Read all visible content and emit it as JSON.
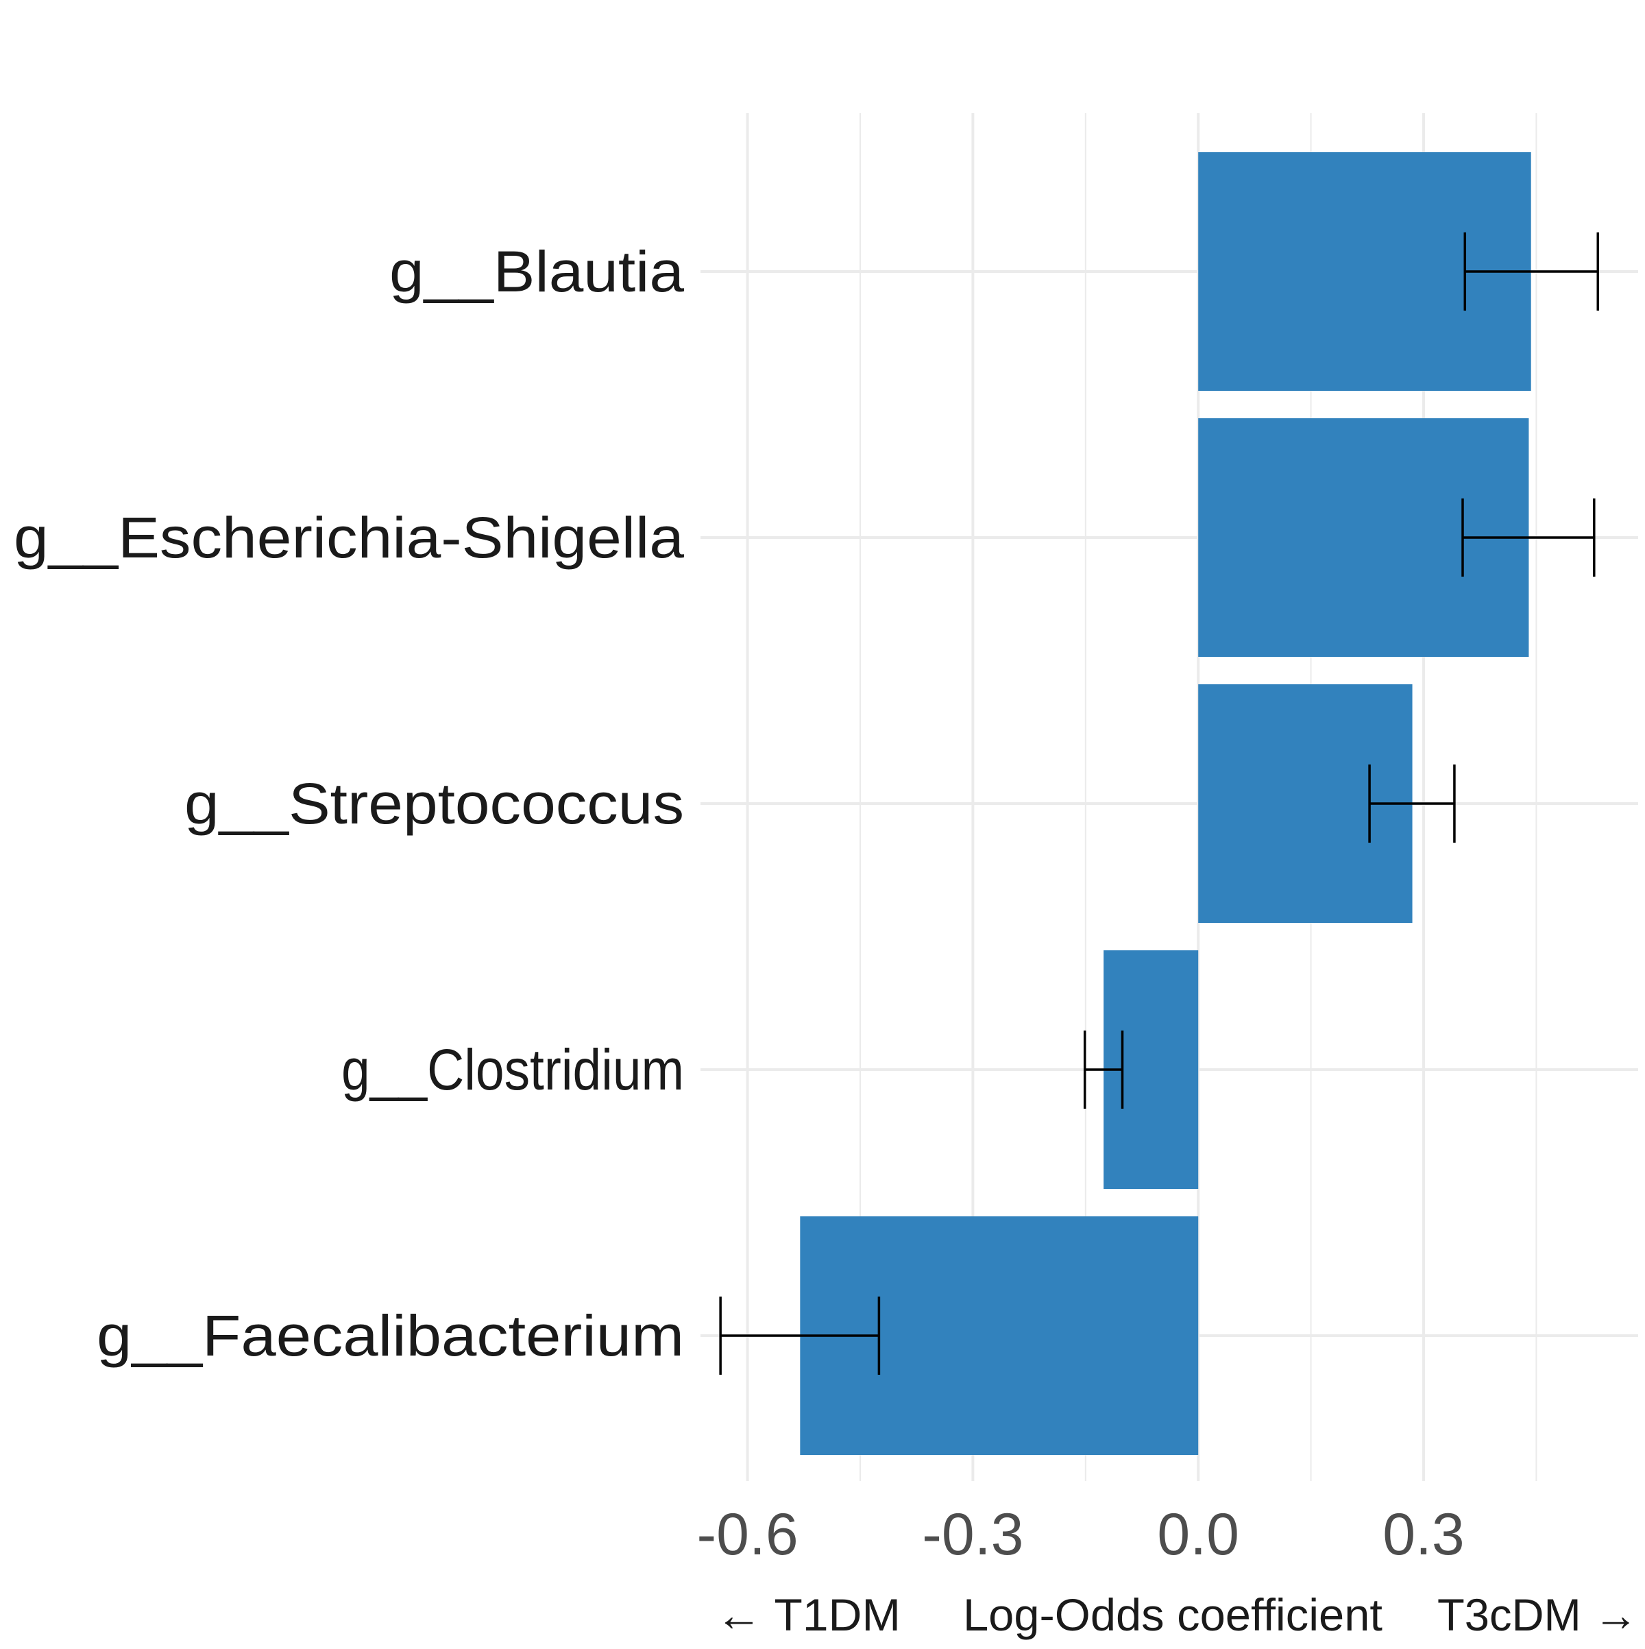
{
  "chart_data": {
    "type": "bar",
    "orientation": "horizontal",
    "categories": [
      "g__Blautia",
      "g__Escherichia-Shigella",
      "g__Streptococcus",
      "g__Clostridium",
      "g__Faecalibacterium"
    ],
    "values": [
      0.443,
      0.44,
      0.285,
      -0.126,
      -0.53
    ],
    "error_bars": [
      {
        "low": 0.355,
        "high": 0.532
      },
      {
        "low": 0.352,
        "high": 0.527
      },
      {
        "low": 0.228,
        "high": 0.341
      },
      {
        "low": -0.151,
        "high": -0.101
      },
      {
        "low": -0.636,
        "high": -0.425
      }
    ],
    "xlabel": "Log-Odds coefficient",
    "xlabel_left": "← T1DM",
    "xlabel_right": "T3cDM →",
    "x_ticks": [
      -0.6,
      -0.3,
      0.0,
      0.3
    ],
    "x_tick_labels": [
      "-0.6",
      "-0.3",
      "0.0",
      "0.3"
    ],
    "xlim": [
      -0.6626,
      0.5856
    ],
    "grid": true,
    "bar_color": "#3282bd",
    "errorbar_color": "#000000",
    "grid_color": "#ebebeb"
  }
}
